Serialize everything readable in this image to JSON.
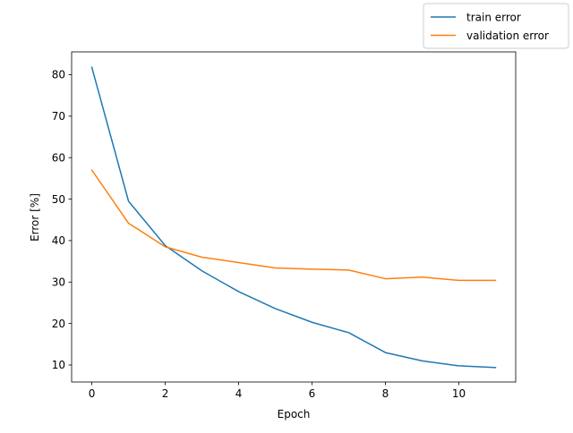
{
  "chart_data": {
    "type": "line",
    "title": "",
    "xlabel": "Epoch",
    "ylabel": "Error [%]",
    "xlim": [
      -0.55,
      11.55
    ],
    "ylim": [
      5.9,
      85.5
    ],
    "xticks": [
      0,
      2,
      4,
      6,
      8,
      10
    ],
    "yticks": [
      10,
      20,
      30,
      40,
      50,
      60,
      70,
      80
    ],
    "grid": false,
    "legend_position": "top-right",
    "x": [
      0,
      1,
      2,
      3,
      4,
      5,
      6,
      7,
      8,
      9,
      10,
      11
    ],
    "series": [
      {
        "name": "train error",
        "color": "#1f77b4",
        "values": [
          81.8,
          49.5,
          38.8,
          32.7,
          27.7,
          23.6,
          20.3,
          17.8,
          13.0,
          11.0,
          9.8,
          9.4
        ]
      },
      {
        "name": "validation error",
        "color": "#ff7f0e",
        "values": [
          57.0,
          44.2,
          38.5,
          36.0,
          34.7,
          33.4,
          33.1,
          32.9,
          30.8,
          31.2,
          30.4,
          30.4
        ]
      }
    ]
  }
}
